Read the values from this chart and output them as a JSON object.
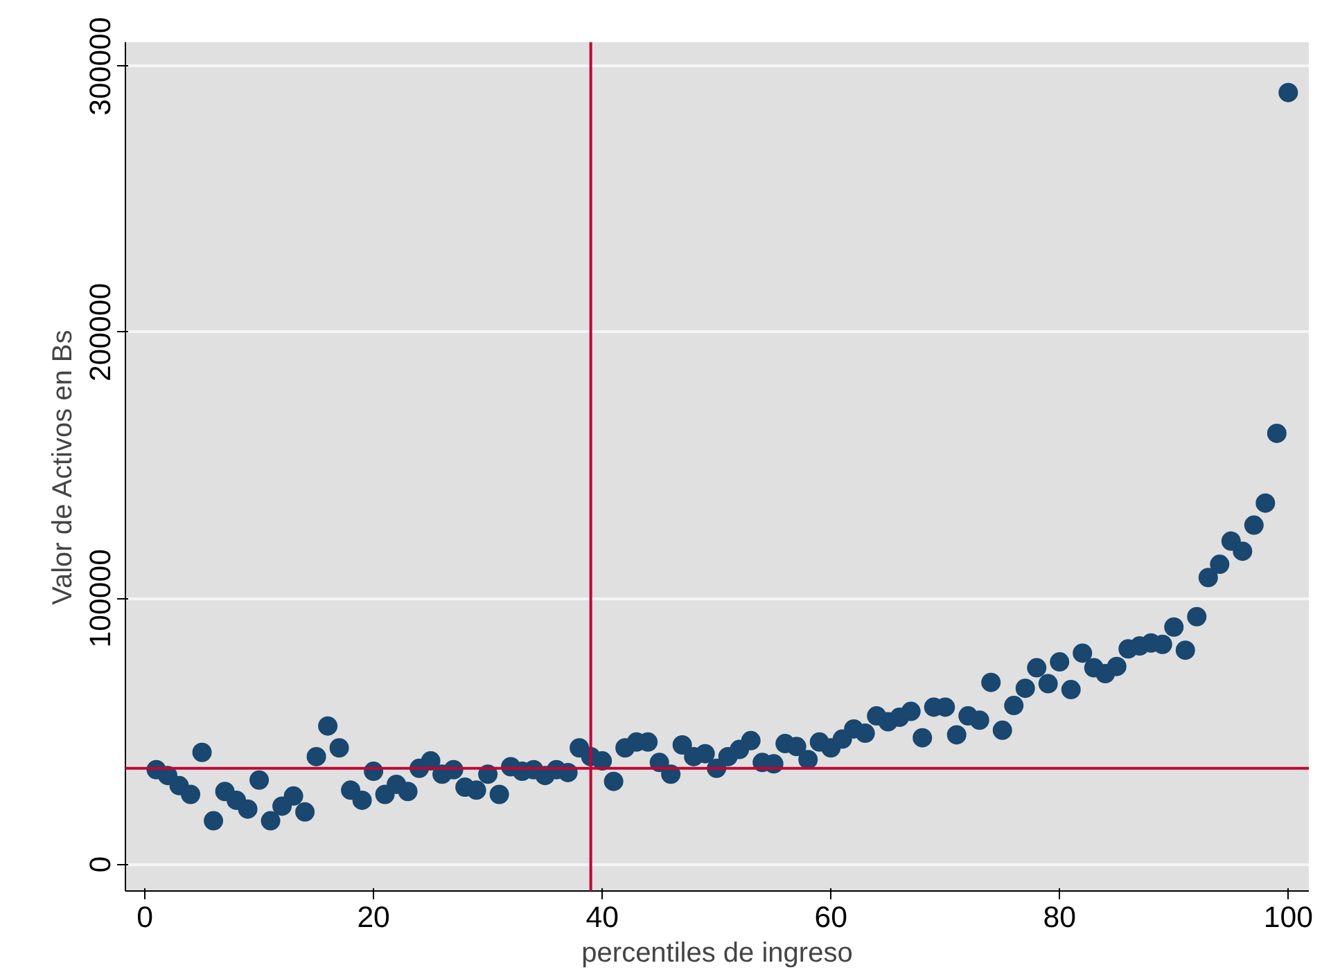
{
  "chart_data": {
    "type": "scatter",
    "xlabel": "percentiles de ingreso",
    "ylabel": "Valor de Activos en Bs",
    "x": [
      1,
      2,
      3,
      4,
      5,
      6,
      7,
      8,
      9,
      10,
      11,
      12,
      13,
      14,
      15,
      16,
      17,
      18,
      19,
      20,
      21,
      22,
      23,
      24,
      25,
      26,
      27,
      28,
      29,
      30,
      31,
      32,
      33,
      34,
      35,
      36,
      37,
      38,
      39,
      40,
      41,
      42,
      43,
      44,
      45,
      46,
      47,
      48,
      49,
      50,
      51,
      52,
      53,
      54,
      55,
      56,
      57,
      58,
      59,
      60,
      61,
      62,
      63,
      64,
      65,
      66,
      67,
      68,
      69,
      70,
      71,
      72,
      73,
      74,
      75,
      76,
      77,
      78,
      79,
      80,
      81,
      82,
      83,
      84,
      85,
      86,
      87,
      88,
      89,
      90,
      91,
      92,
      93,
      94,
      95,
      96,
      97,
      98,
      99,
      100
    ],
    "series": [
      {
        "color": "#1a476f",
        "values": [
          35600,
          33400,
          29600,
          26300,
          42100,
          16400,
          27400,
          24100,
          20800,
          31700,
          16400,
          21900,
          25700,
          19700,
          40500,
          52000,
          43800,
          27900,
          24100,
          35000,
          26300,
          30100,
          27400,
          36100,
          38900,
          33900,
          35600,
          29000,
          27900,
          33900,
          26300,
          36700,
          35000,
          35600,
          33400,
          35600,
          34500,
          43800,
          40500,
          38900,
          31200,
          43800,
          46000,
          46000,
          38300,
          33900,
          44900,
          40500,
          41600,
          36100,
          40500,
          43200,
          46500,
          38300,
          37800,
          45400,
          44300,
          39400,
          46000,
          43800,
          47100,
          50900,
          49300,
          55800,
          53600,
          55300,
          57500,
          47600,
          59100,
          59100,
          48700,
          55800,
          54200,
          68400,
          50400,
          59700,
          66200,
          73900,
          67900,
          76100,
          65700,
          79400,
          73900,
          71700,
          74400,
          81000,
          82100,
          83200,
          82700,
          89200,
          80500,
          93100,
          107800,
          112800,
          121500,
          117700,
          127500,
          135800,
          162000,
          290100
        ]
      }
    ],
    "marker": "circle",
    "xlim": [
      -1.7,
      101.8
    ],
    "ylim": [
      -10000,
      309000
    ],
    "xticks": [
      0,
      20,
      40,
      60,
      80,
      100
    ],
    "yticks": [
      0,
      100000,
      200000,
      300000
    ],
    "grid": "y",
    "ref_lines": [
      {
        "axis": "x",
        "value": 39,
        "color": "#c10534"
      },
      {
        "axis": "y",
        "value": 36100,
        "color": "#c10534"
      }
    ]
  }
}
